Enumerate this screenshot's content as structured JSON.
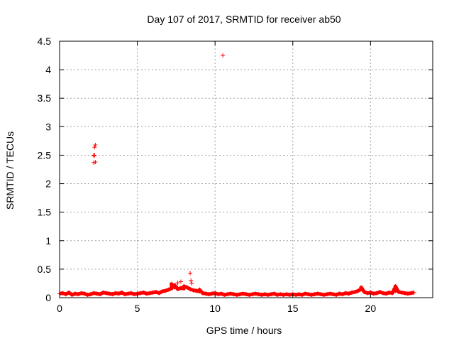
{
  "chart_data": {
    "type": "scatter",
    "title": "Day 107 of 2017, SRMTID for receiver ab50",
    "xlabel": "GPS time / hours",
    "ylabel": "SRMTID / TECUs",
    "xlim": [
      0,
      24
    ],
    "ylim": [
      0,
      4.5
    ],
    "xticks": [
      0,
      5,
      10,
      15,
      20
    ],
    "yticks": [
      0,
      0.5,
      1,
      1.5,
      2,
      2.5,
      3,
      3.5,
      4,
      4.5
    ],
    "grid": true,
    "legend": "none",
    "marker": "plus",
    "series": [
      {
        "color": "#ff0000",
        "x": [
          0.0,
          0.2,
          0.4,
          0.6,
          0.8,
          1.0,
          1.2,
          1.4,
          1.6,
          1.8,
          2.0,
          2.2,
          2.4,
          2.6,
          2.8,
          3.0,
          3.2,
          3.4,
          3.6,
          3.8,
          4.0,
          4.2,
          4.4,
          4.6,
          4.8,
          5.0,
          5.2,
          5.4,
          5.6,
          5.8,
          6.0,
          6.2,
          6.4,
          6.6,
          6.8,
          7.0,
          7.2,
          7.4,
          7.6,
          7.8,
          8.0,
          8.2,
          8.4,
          8.6,
          8.8,
          9.0,
          9.2,
          9.4,
          9.6,
          9.8,
          10.0,
          10.2,
          10.4,
          10.6,
          10.8,
          11.0,
          11.2,
          11.4,
          11.6,
          11.8,
          12.0,
          12.2,
          12.4,
          12.6,
          12.8,
          13.0,
          13.2,
          13.4,
          13.6,
          13.8,
          14.0,
          14.2,
          14.4,
          14.6,
          14.8,
          15.0,
          15.2,
          15.4,
          15.6,
          15.8,
          16.0,
          16.2,
          16.4,
          16.6,
          16.8,
          17.0,
          17.2,
          17.4,
          17.6,
          17.8,
          18.0,
          18.2,
          18.4,
          18.6,
          18.8,
          19.0,
          19.2,
          19.4,
          19.6,
          19.8,
          20.0,
          20.2,
          20.4,
          20.6,
          20.8,
          21.0,
          21.2,
          21.4,
          21.6,
          21.8,
          22.0,
          22.2,
          22.4,
          22.6,
          22.8,
          2.2,
          2.2,
          2.25,
          2.3,
          2.25,
          2.3,
          2.2,
          10.5,
          8.4,
          8.45,
          8.5,
          7.8,
          7.6,
          7.2,
          7.4,
          8.0,
          8.8,
          9.0,
          19.4,
          21.6,
          21.55
        ],
        "y": [
          0.07,
          0.08,
          0.06,
          0.09,
          0.05,
          0.07,
          0.06,
          0.08,
          0.07,
          0.05,
          0.06,
          0.08,
          0.07,
          0.06,
          0.09,
          0.08,
          0.07,
          0.06,
          0.08,
          0.07,
          0.09,
          0.06,
          0.07,
          0.08,
          0.06,
          0.07,
          0.08,
          0.09,
          0.07,
          0.08,
          0.09,
          0.1,
          0.08,
          0.11,
          0.12,
          0.14,
          0.16,
          0.18,
          0.15,
          0.17,
          0.16,
          0.18,
          0.15,
          0.13,
          0.12,
          0.11,
          0.08,
          0.07,
          0.06,
          0.07,
          0.08,
          0.06,
          0.07,
          0.05,
          0.06,
          0.07,
          0.06,
          0.05,
          0.06,
          0.07,
          0.06,
          0.05,
          0.06,
          0.07,
          0.06,
          0.05,
          0.06,
          0.05,
          0.06,
          0.07,
          0.05,
          0.06,
          0.05,
          0.06,
          0.05,
          0.06,
          0.05,
          0.06,
          0.05,
          0.07,
          0.06,
          0.05,
          0.06,
          0.07,
          0.06,
          0.05,
          0.06,
          0.07,
          0.06,
          0.05,
          0.07,
          0.06,
          0.08,
          0.07,
          0.09,
          0.1,
          0.12,
          0.15,
          0.1,
          0.08,
          0.09,
          0.07,
          0.08,
          0.1,
          0.08,
          0.07,
          0.09,
          0.08,
          0.12,
          0.1,
          0.09,
          0.08,
          0.07,
          0.08,
          0.09,
          2.37,
          2.49,
          2.64,
          2.68,
          2.5,
          2.38,
          2.5,
          4.25,
          0.43,
          0.3,
          0.25,
          0.28,
          0.26,
          0.24,
          0.22,
          0.2,
          0.12,
          0.14,
          0.18,
          0.2,
          0.16
        ]
      }
    ]
  }
}
